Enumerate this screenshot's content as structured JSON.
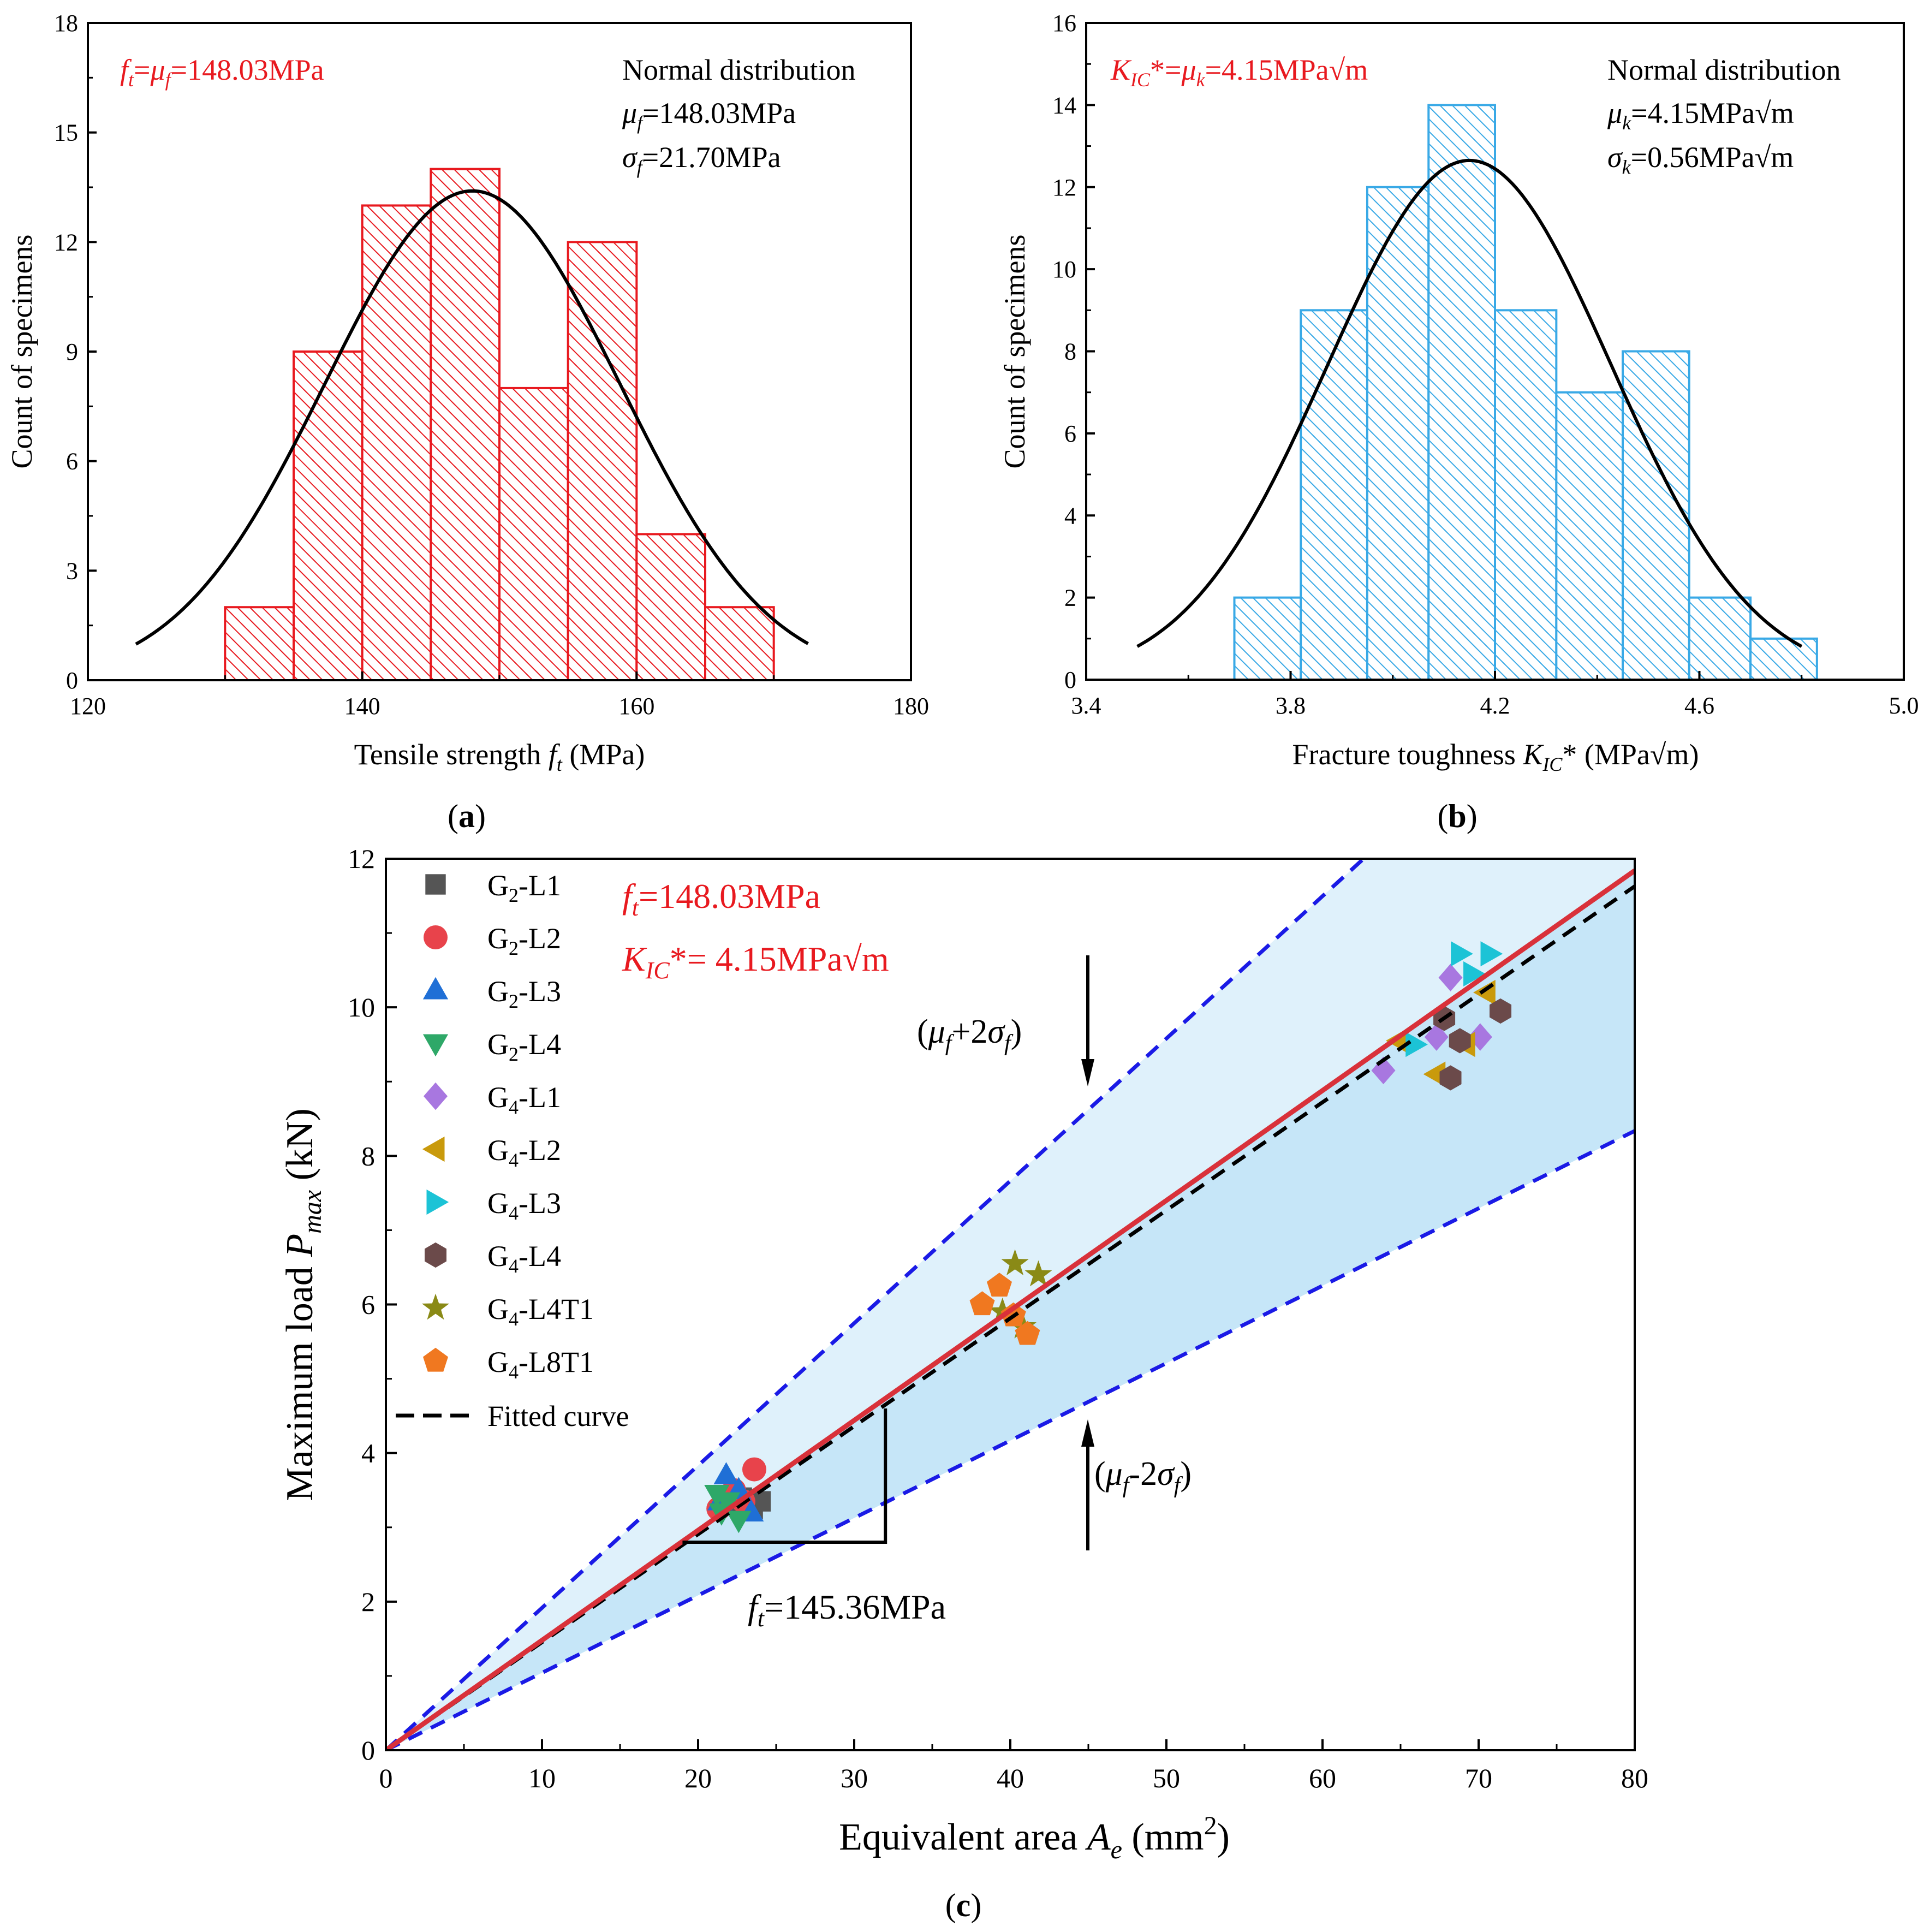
{
  "chart_data": [
    {
      "type": "bar",
      "panel": "a",
      "panel_label": "(a)",
      "panel_letter": "a",
      "xlabel": "Tensile strength f_t (MPa)",
      "xlabel_main": "Tensile strength ",
      "xlabel_var": "f",
      "xlabel_sub": "t",
      "xlabel_unit": " (MPa)",
      "ylabel": "Count of specimens",
      "xlim": [
        120,
        180
      ],
      "ylim": [
        0,
        18
      ],
      "xticks": [
        "120",
        "140",
        "160",
        "180"
      ],
      "xtick_values": [
        120,
        140,
        160,
        180
      ],
      "yticks": [
        "0",
        "3",
        "6",
        "9",
        "12",
        "15",
        "18"
      ],
      "ytick_values": [
        0,
        3,
        6,
        9,
        12,
        15,
        18
      ],
      "bin_edges": [
        130,
        135,
        140,
        145,
        150,
        155,
        160,
        165,
        170
      ],
      "values": [
        2,
        9,
        13,
        14,
        8,
        12,
        4,
        2
      ],
      "bar_color": "#e8191f",
      "fit": {
        "mu": 148.03,
        "sigma": 21.7,
        "peak": 13.4,
        "range": [
          123.5,
          172.5
        ]
      },
      "annotation_red": "f_t=μ_f=148.03MPa",
      "annotation_red_parts": [
        "f",
        "t",
        "=",
        "μ",
        "f",
        "=148.03MPa"
      ],
      "legend_title": "Normal distribution",
      "legend_mu": "μ_f=148.03MPa",
      "legend_mu_parts": [
        "μ",
        "f",
        "=148.03MPa"
      ],
      "legend_sigma": "σ_f=21.70MPa",
      "legend_sigma_parts": [
        "σ",
        "f",
        "=21.70MPa"
      ]
    },
    {
      "type": "bar",
      "panel": "b",
      "panel_label": "(b)",
      "panel_letter": "b",
      "xlabel": "Fracture toughness K_IC* (MPa√m)",
      "xlabel_main": "Fracture toughness ",
      "xlabel_var": "K",
      "xlabel_sub": "IC",
      "xlabel_unit": "* (MPa√m)",
      "ylabel": "Count of specimens",
      "xlim": [
        3.4,
        5.0
      ],
      "ylim": [
        0,
        16
      ],
      "xticks": [
        "3.4",
        "3.8",
        "4.2",
        "4.6",
        "5.0"
      ],
      "xtick_values": [
        3.4,
        3.8,
        4.2,
        4.6,
        5.0
      ],
      "yticks": [
        "0",
        "2",
        "4",
        "6",
        "8",
        "10",
        "12",
        "14",
        "16"
      ],
      "ytick_values": [
        0,
        2,
        4,
        6,
        8,
        10,
        12,
        14,
        16
      ],
      "bin_edges": [
        3.69,
        3.82,
        3.95,
        4.07,
        4.2,
        4.32,
        4.45,
        4.58,
        4.7,
        4.83
      ],
      "values": [
        2,
        9,
        12,
        14,
        9,
        7,
        8,
        2,
        1
      ],
      "bar_color": "#39a9e6",
      "fit": {
        "mu": 4.15,
        "sigma": 0.56,
        "peak": 12.65,
        "range": [
          3.5,
          4.8
        ]
      },
      "annotation_red": "K_IC*=μ_k=4.15MPa√m",
      "annotation_red_parts": [
        "K",
        "IC",
        "*=",
        "μ",
        "k",
        "=4.15MPa√m"
      ],
      "legend_title": "Normal distribution",
      "legend_mu": "μ_k=4.15MPa√m",
      "legend_mu_parts": [
        "μ",
        "k",
        "=4.15MPa√m"
      ],
      "legend_sigma": "σ_k=0.56MPa√m",
      "legend_sigma_parts": [
        "σ",
        "k",
        "=0.56MPa√m"
      ]
    },
    {
      "type": "scatter",
      "panel": "c",
      "panel_label": "(c)",
      "panel_letter": "c",
      "xlabel": "Equivalent area A_e (mm²)",
      "xlabel_main": "Equivalent area ",
      "xlabel_var": "A",
      "xlabel_sub": "e",
      "xlabel_unit_open": " (mm",
      "xlabel_sup": "2",
      "xlabel_unit_close": ")",
      "ylabel": "Maximum load P_max (kN)",
      "ylabel_main": "Maximum load ",
      "ylabel_var": "P",
      "ylabel_sub": "max",
      "ylabel_unit": " (kN)",
      "xlim": [
        0,
        80
      ],
      "ylim": [
        0,
        12
      ],
      "xticks": [
        "0",
        "10",
        "20",
        "30",
        "40",
        "50",
        "60",
        "70",
        "80"
      ],
      "xtick_values": [
        0,
        10,
        20,
        30,
        40,
        50,
        60,
        70,
        80
      ],
      "yticks": [
        "0",
        "2",
        "4",
        "6",
        "8",
        "10",
        "12"
      ],
      "ytick_values": [
        0,
        2,
        4,
        6,
        8,
        10,
        12
      ],
      "lines": {
        "mean_fit": {
          "slope": 0.148,
          "color": "#d9313a"
        },
        "fitted_curve": {
          "slope": 0.14536,
          "color": "#000000"
        },
        "upper_bound": {
          "slope": 0.1916,
          "color": "#1a1ae6"
        },
        "lower_bound": {
          "slope": 0.1042,
          "color": "#1a1ae6"
        }
      },
      "band_colors": {
        "upper": "#dff1fb",
        "lower": "#c6e6f8"
      },
      "annotations": {
        "ft_mean": "f_t=148.03MPa",
        "ft_mean_parts": [
          "f",
          "t",
          "=148.03MPa"
        ],
        "kic_mean": "K_IC*= 4.15MPa√m",
        "kic_mean_parts": [
          "K",
          "IC",
          "*= 4.15MPa√m"
        ],
        "upper_label": "(μ_f+2σ_f)",
        "upper_label_parts": [
          "(",
          "μ",
          "f",
          "+2",
          "σ",
          "f",
          ")"
        ],
        "lower_label": "(μ_f-2σ_f)",
        "lower_label_parts": [
          "(",
          "μ",
          "f",
          "-2",
          "σ",
          "f",
          ")"
        ],
        "ft_fit": "f_t=145.36MPa",
        "ft_fit_parts": [
          "f",
          "t",
          "=145.36MPa"
        ]
      },
      "slope_triangle": {
        "x": [
          19,
          32
        ],
        "y": [
          2.8,
          4.6
        ]
      },
      "legend": [
        {
          "name": "G2-L1",
          "base": "G",
          "sub": "2",
          "suffix": "-L1",
          "marker": "square",
          "color": "#555555"
        },
        {
          "name": "G2-L2",
          "base": "G",
          "sub": "2",
          "suffix": "-L2",
          "marker": "circle",
          "color": "#e8434b"
        },
        {
          "name": "G2-L3",
          "base": "G",
          "sub": "2",
          "suffix": "-L3",
          "marker": "triangle-up",
          "color": "#1f6fd6"
        },
        {
          "name": "G2-L4",
          "base": "G",
          "sub": "2",
          "suffix": "-L4",
          "marker": "triangle-down",
          "color": "#2ea868"
        },
        {
          "name": "G4-L1",
          "base": "G",
          "sub": "4",
          "suffix": "-L1",
          "marker": "diamond",
          "color": "#a877e0"
        },
        {
          "name": "G4-L2",
          "base": "G",
          "sub": "4",
          "suffix": "-L2",
          "marker": "triangle-left",
          "color": "#c99a0c"
        },
        {
          "name": "G4-L3",
          "base": "G",
          "sub": "4",
          "suffix": "-L3",
          "marker": "triangle-right",
          "color": "#1cc3d6"
        },
        {
          "name": "G4-L4",
          "base": "G",
          "sub": "4",
          "suffix": "-L4",
          "marker": "hexagon",
          "color": "#6b4a4a"
        },
        {
          "name": "G4-L4T1",
          "base": "G",
          "sub": "4",
          "suffix": "-L4T1",
          "marker": "star",
          "color": "#8a8a16"
        },
        {
          "name": "G4-L8T1",
          "base": "G",
          "sub": "4",
          "suffix": "-L8T1",
          "marker": "pentagon",
          "color": "#f07820"
        }
      ],
      "fitted_curve_label": "Fitted curve",
      "series": [
        {
          "name": "G2-L1",
          "x": [
            22.0,
            22.8,
            23.5,
            24.0
          ],
          "y": [
            3.3,
            3.4,
            3.25,
            3.35
          ]
        },
        {
          "name": "G2-L2",
          "x": [
            21.3,
            22.3,
            23.6,
            22.9
          ],
          "y": [
            3.25,
            3.5,
            3.78,
            3.35
          ]
        },
        {
          "name": "G2-L3",
          "x": [
            21.8,
            22.6,
            23.4,
            21.4
          ],
          "y": [
            3.7,
            3.5,
            3.2,
            3.35
          ]
        },
        {
          "name": "G2-L4",
          "x": [
            21.2,
            21.9,
            22.6,
            21.5
          ],
          "y": [
            3.45,
            3.35,
            3.1,
            3.2
          ]
        },
        {
          "name": "G4-L1",
          "x": [
            63.9,
            67.3,
            68.2,
            70.1
          ],
          "y": [
            9.15,
            9.6,
            10.4,
            9.6
          ]
        },
        {
          "name": "G4-L2",
          "x": [
            67.3,
            69.2,
            70.5,
            64.9
          ],
          "y": [
            9.1,
            9.5,
            10.2,
            9.55
          ]
        },
        {
          "name": "G4-L3",
          "x": [
            68.8,
            70.7,
            65.9,
            69.6
          ],
          "y": [
            10.72,
            10.72,
            9.5,
            10.45
          ]
        },
        {
          "name": "G4-L4",
          "x": [
            68.2,
            68.8,
            71.4,
            67.8
          ],
          "y": [
            9.05,
            9.55,
            9.95,
            9.85
          ]
        },
        {
          "name": "G4-L4T1",
          "x": [
            40.3,
            41.8,
            39.5,
            40.8
          ],
          "y": [
            6.55,
            6.4,
            5.9,
            5.7
          ]
        },
        {
          "name": "G4-L8T1",
          "x": [
            38.2,
            39.3,
            41.1,
            40.2
          ],
          "y": [
            6.0,
            6.25,
            5.6,
            5.85
          ]
        }
      ]
    }
  ]
}
